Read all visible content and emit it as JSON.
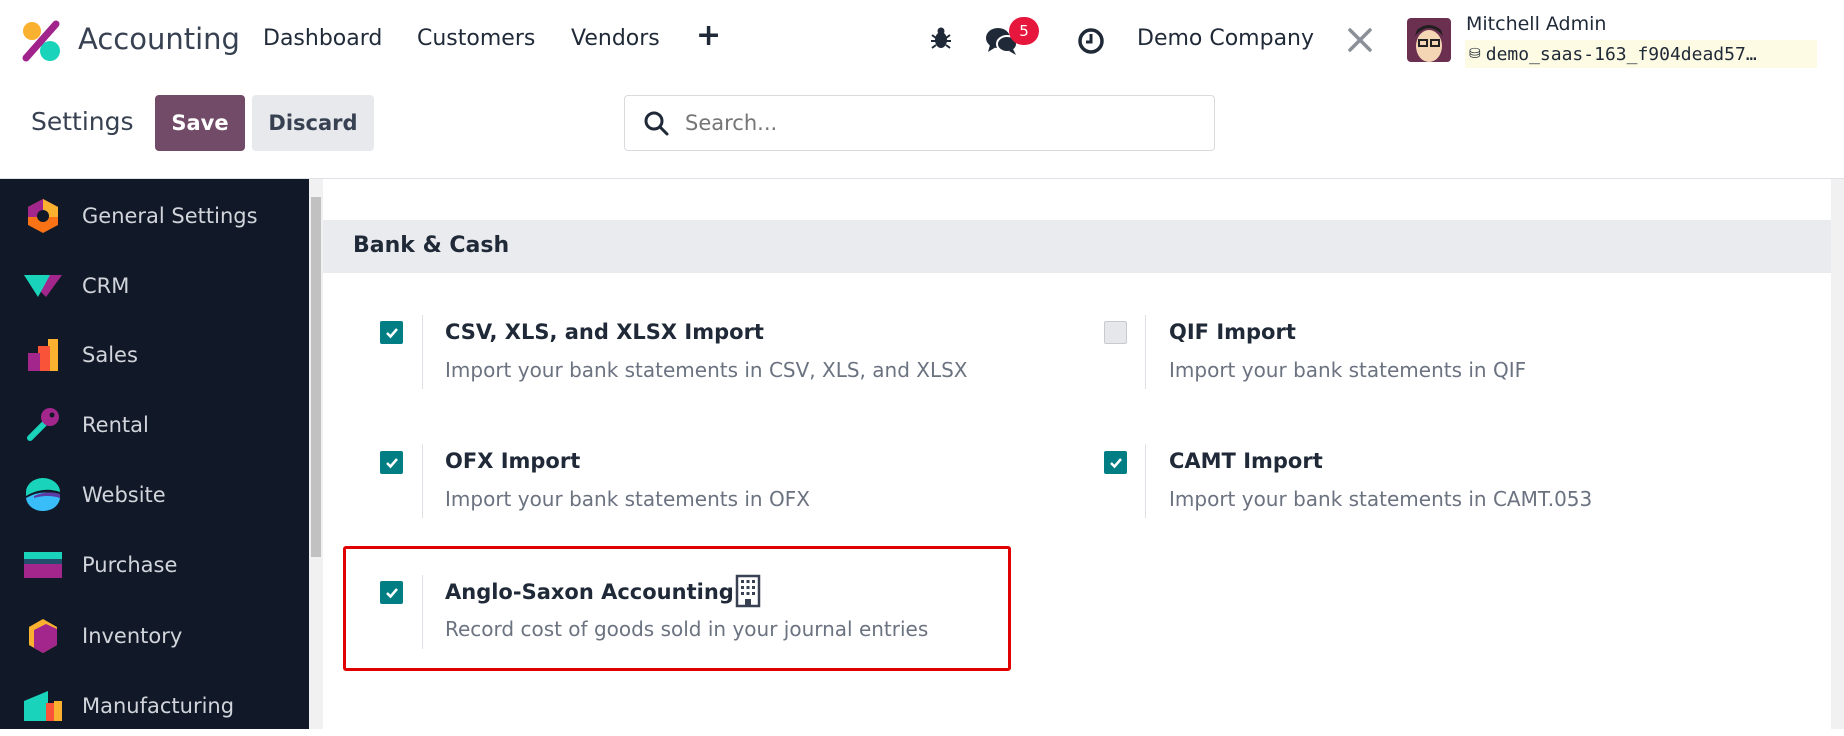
{
  "header": {
    "app_title": "Accounting",
    "nav": [
      "Dashboard",
      "Customers",
      "Vendors"
    ],
    "add_icon": "plus-icon",
    "chat_badge": "5",
    "company": "Demo Company",
    "user_name": "Mitchell Admin",
    "database": "demo_saas-163_f904dead57…"
  },
  "control": {
    "title": "Settings",
    "save_label": "Save",
    "discard_label": "Discard",
    "search_placeholder": "Search..."
  },
  "sidebar": {
    "items": [
      {
        "label": "General Settings"
      },
      {
        "label": "CRM"
      },
      {
        "label": "Sales"
      },
      {
        "label": "Rental"
      },
      {
        "label": "Website"
      },
      {
        "label": "Purchase"
      },
      {
        "label": "Inventory"
      },
      {
        "label": "Manufacturing"
      }
    ]
  },
  "section": {
    "title": "Bank & Cash",
    "settings": [
      {
        "title": "CSV, XLS, and XLSX Import",
        "desc": "Import your bank statements in CSV, XLS, and XLSX",
        "checked": true
      },
      {
        "title": "QIF Import",
        "desc": "Import your bank statements in QIF",
        "checked": false
      },
      {
        "title": "OFX Import",
        "desc": "Import your bank statements in OFX",
        "checked": true
      },
      {
        "title": "CAMT Import",
        "desc": "Import your bank statements in CAMT.053",
        "checked": true
      },
      {
        "title": "Anglo-Saxon Accounting",
        "desc": "Record cost of goods sold in your journal entries",
        "checked": true,
        "icon": "building-icon",
        "highlighted": true
      }
    ]
  },
  "colors": {
    "primary": "#714b67",
    "checkbox": "#017e84",
    "sidebar_bg": "#111827",
    "highlight": "#e00000"
  }
}
